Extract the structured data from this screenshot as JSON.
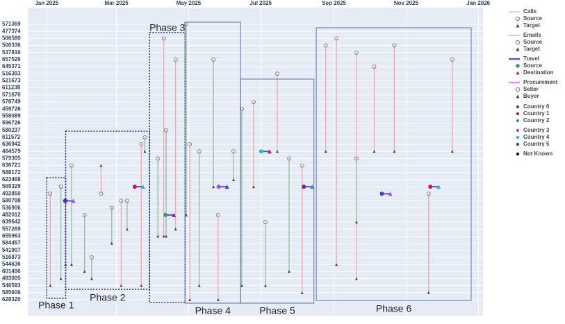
{
  "chart_data": {
    "type": "timeline",
    "xlim": [
      "2024-12-16",
      "2026-01-05"
    ],
    "xticks": [
      {
        "value": "2025-01-01",
        "label": "Jan 2025"
      },
      {
        "value": "2025-03-01",
        "label": "Mar 2025"
      },
      {
        "value": "2025-05-01",
        "label": "May 2025"
      },
      {
        "value": "2025-07-01",
        "label": "Jul 2025"
      },
      {
        "value": "2025-09-01",
        "label": "Sep 2025"
      },
      {
        "value": "2025-11-01",
        "label": "Nov 2025"
      },
      {
        "value": "2026-01-01",
        "label": "Jan 2026"
      }
    ],
    "categories": [
      "571369",
      "477374",
      "566580",
      "500336",
      "537816",
      "657526",
      "645371",
      "516393",
      "521673",
      "611238",
      "571670",
      "578749",
      "459726",
      "558089",
      "596726",
      "580237",
      "611572",
      "636942",
      "464579",
      "579305",
      "636721",
      "588172",
      "623468",
      "569329",
      "492850",
      "580798",
      "536906",
      "482012",
      "639642",
      "557269",
      "655963",
      "584457",
      "541907",
      "516873",
      "544636",
      "601496",
      "483005",
      "546593",
      "585606",
      "628320"
    ],
    "grid": true,
    "legend": [
      {
        "name": "Calls",
        "color": "#f4a3ad",
        "items": [
          {
            "name": "Source",
            "symbol": "circle"
          },
          {
            "name": "Target",
            "symbol": "triangle"
          }
        ]
      },
      {
        "name": "Emails",
        "color": "#8fbf98",
        "items": [
          {
            "name": "Source",
            "symbol": "circle"
          },
          {
            "name": "Target",
            "symbol": "triangle"
          }
        ]
      },
      {
        "name": "Travel",
        "color": "#6a4fc4",
        "items": [
          {
            "name": "Source",
            "symbol": "dot"
          },
          {
            "name": "Destination",
            "symbol": "triangle"
          }
        ]
      },
      {
        "name": "Procurement",
        "color": "#e58fe0",
        "items": [
          {
            "name": "Seller",
            "symbol": "circle"
          },
          {
            "name": "Buyer",
            "symbol": "triangle"
          }
        ]
      }
    ],
    "countries": [
      {
        "name": "Country 0",
        "color": "#4b3fbf"
      },
      {
        "name": "Country 1",
        "color": "#c2185b"
      },
      {
        "name": "Country 2",
        "color": "#2e9e6e"
      },
      {
        "name": "Country 3",
        "color": "#9c4de0"
      },
      {
        "name": "Country 4",
        "color": "#22bfc9"
      },
      {
        "name": "Country 5",
        "color": "#7a1fa2"
      },
      {
        "name": "Not Known",
        "color": "#111111"
      }
    ],
    "phases": [
      {
        "label": "Phase 1",
        "start": "2025-01-01",
        "end": "2025-01-17",
        "style": "dotted"
      },
      {
        "label": "Phase 2",
        "start": "2025-01-17",
        "end": "2025-03-29",
        "style": "dotted"
      },
      {
        "label": "Phase 3",
        "start": "2025-03-29",
        "end": "2025-04-28",
        "style": "dotted"
      },
      {
        "label": "Phase 4",
        "start": "2025-04-28",
        "end": "2025-06-14",
        "style": "solid"
      },
      {
        "label": "Phase 5",
        "start": "2025-06-14",
        "end": "2025-08-15",
        "style": "solid"
      },
      {
        "label": "Phase 6",
        "start": "2025-08-17",
        "end": "2025-12-26",
        "style": "solid"
      }
    ],
    "events": [
      {
        "type": "Calls",
        "date": "2025-01-04",
        "from": "492850",
        "to": "546593"
      },
      {
        "type": "Emails",
        "date": "2025-01-13",
        "from": "569329",
        "to": "483005"
      },
      {
        "type": "Calls",
        "date": "2025-01-17",
        "from": "580798",
        "to": "544636"
      },
      {
        "type": "Emails",
        "date": "2025-01-22",
        "from": "636721",
        "to": "544636"
      },
      {
        "type": "Emails",
        "date": "2025-02-02",
        "from": "482012",
        "to": "601496"
      },
      {
        "type": "Emails",
        "date": "2025-02-08",
        "from": "516873",
        "to": "483005"
      },
      {
        "type": "Calls",
        "date": "2025-02-16",
        "from": "492850",
        "to": "636721"
      },
      {
        "type": "Emails",
        "date": "2025-02-25",
        "from": "536906",
        "to": "584457"
      },
      {
        "type": "Calls",
        "date": "2025-03-05",
        "from": "580798",
        "to": "546593"
      },
      {
        "type": "Emails",
        "date": "2025-03-10",
        "from": "580798",
        "to": "557269"
      },
      {
        "type": "Calls",
        "date": "2025-03-22",
        "from": "636942",
        "to": "546593"
      },
      {
        "type": "Emails",
        "date": "2025-03-25",
        "from": "611572",
        "to": "464579"
      },
      {
        "type": "Emails",
        "date": "2025-04-05",
        "from": "579305",
        "to": "655963"
      },
      {
        "type": "Calls",
        "date": "2025-04-10",
        "from": "566580",
        "to": "655963"
      },
      {
        "type": "Emails",
        "date": "2025-04-12",
        "from": "580237",
        "to": "655963"
      },
      {
        "type": "Calls",
        "date": "2025-04-20",
        "from": "657526",
        "to": "557269"
      },
      {
        "type": "Emails",
        "date": "2025-04-29",
        "from": "571369",
        "to": "482012"
      },
      {
        "type": "Calls",
        "date": "2025-05-02",
        "from": "636942",
        "to": "628320"
      },
      {
        "type": "Emails",
        "date": "2025-05-10",
        "from": "464579",
        "to": "546593"
      },
      {
        "type": "Emails",
        "date": "2025-05-22",
        "from": "657526",
        "to": "569329"
      },
      {
        "type": "Calls",
        "date": "2025-05-26",
        "from": "482012",
        "to": "628320"
      },
      {
        "type": "Emails",
        "date": "2025-06-08",
        "from": "464579",
        "to": "623468"
      },
      {
        "type": "Emails",
        "date": "2025-06-15",
        "from": "459726",
        "to": "546593"
      },
      {
        "type": "Calls",
        "date": "2025-06-25",
        "from": "578749",
        "to": "569329"
      },
      {
        "type": "Emails",
        "date": "2025-07-05",
        "from": "639642",
        "to": "546593"
      },
      {
        "type": "Calls",
        "date": "2025-07-15",
        "from": "516393",
        "to": "464579"
      },
      {
        "type": "Emails",
        "date": "2025-07-25",
        "from": "579305",
        "to": "601496"
      },
      {
        "type": "Calls",
        "date": "2025-08-05",
        "from": "636721",
        "to": "585606"
      },
      {
        "type": "Calls",
        "date": "2025-08-25",
        "from": "500336",
        "to": "464579"
      },
      {
        "type": "Calls",
        "date": "2025-09-03",
        "from": "566580",
        "to": "544636"
      },
      {
        "type": "Calls",
        "date": "2025-09-20",
        "from": "537816",
        "to": "483005"
      },
      {
        "type": "Emails",
        "date": "2025-09-20",
        "from": "579305",
        "to": "639642"
      },
      {
        "type": "Calls",
        "date": "2025-10-05",
        "from": "645371",
        "to": "464579"
      },
      {
        "type": "Calls",
        "date": "2025-10-22",
        "from": "500336",
        "to": "464579"
      },
      {
        "type": "Calls",
        "date": "2025-11-20",
        "from": "492850",
        "to": "585606"
      },
      {
        "type": "Calls",
        "date": "2025-12-10",
        "from": "657526",
        "to": "464579"
      },
      {
        "type": "Travel",
        "date": "2025-01-20",
        "from": "580798",
        "to": "580798"
      },
      {
        "type": "Travel",
        "date": "2025-03-20",
        "from": "569329",
        "to": "569329"
      },
      {
        "type": "Travel",
        "date": "2025-04-15",
        "from": "482012",
        "to": "482012"
      },
      {
        "type": "Travel",
        "date": "2025-05-30",
        "from": "569329",
        "to": "569329"
      },
      {
        "type": "Travel",
        "date": "2025-07-05",
        "from": "464579",
        "to": "464579"
      },
      {
        "type": "Travel",
        "date": "2025-08-10",
        "from": "569329",
        "to": "569329"
      },
      {
        "type": "Travel",
        "date": "2025-10-15",
        "from": "492850",
        "to": "492850"
      },
      {
        "type": "Travel",
        "date": "2025-11-25",
        "from": "569329",
        "to": "569329"
      }
    ]
  }
}
